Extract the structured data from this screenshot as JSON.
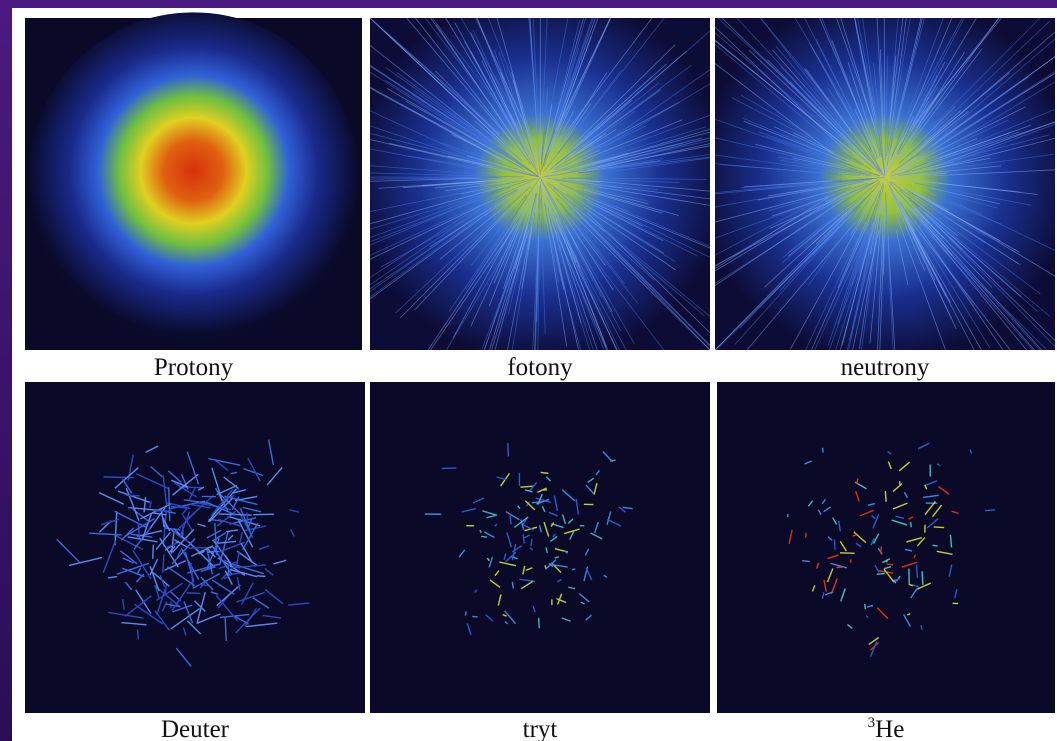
{
  "panels": [
    {
      "label": "Protony"
    },
    {
      "label": "fotony"
    },
    {
      "label": "neutrony"
    },
    {
      "label": "Deuter"
    },
    {
      "label": "tryt"
    },
    {
      "label": "He",
      "superscript": "3"
    }
  ]
}
